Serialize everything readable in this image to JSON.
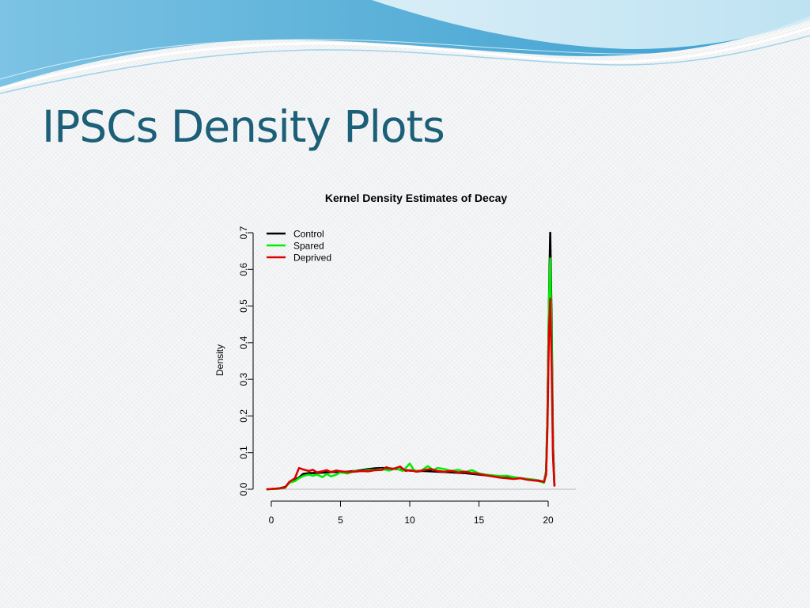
{
  "slide": {
    "title": "IPSCs Density Plots"
  },
  "colors": {
    "title": "#1b5f78",
    "banner_top": "#5ab0d8",
    "banner_light": "#bfe4f3",
    "background": "#f7f8f9"
  },
  "chart_data": {
    "type": "line",
    "title": "Kernel Density Estimates of Decay",
    "xlabel": "",
    "ylabel": "Density",
    "xlim": [
      0,
      20.5
    ],
    "ylim": [
      0,
      0.7
    ],
    "xticks": [
      "0",
      "5",
      "10",
      "15",
      "20"
    ],
    "yticks": [
      "0.0",
      "0.1",
      "0.2",
      "0.3",
      "0.4",
      "0.5",
      "0.6",
      "0.7"
    ],
    "legend_position": "top-left",
    "grid": false,
    "series": [
      {
        "name": "Control",
        "color": "#000000",
        "points": [
          [
            -0.3,
            0
          ],
          [
            0.5,
            0.002
          ],
          [
            1,
            0.006
          ],
          [
            1.3,
            0.018
          ],
          [
            1.7,
            0.026
          ],
          [
            2,
            0.032
          ],
          [
            2.3,
            0.042
          ],
          [
            2.7,
            0.044
          ],
          [
            3,
            0.044
          ],
          [
            3.5,
            0.045
          ],
          [
            4,
            0.046
          ],
          [
            4.5,
            0.047
          ],
          [
            5,
            0.047
          ],
          [
            5.5,
            0.048
          ],
          [
            6,
            0.05
          ],
          [
            6.5,
            0.052
          ],
          [
            7,
            0.055
          ],
          [
            7.5,
            0.057
          ],
          [
            8,
            0.058
          ],
          [
            8.5,
            0.057
          ],
          [
            9,
            0.055
          ],
          [
            9.5,
            0.053
          ],
          [
            10,
            0.051
          ],
          [
            10.5,
            0.05
          ],
          [
            11,
            0.05
          ],
          [
            11.5,
            0.049
          ],
          [
            12,
            0.048
          ],
          [
            12.5,
            0.047
          ],
          [
            13,
            0.046
          ],
          [
            13.5,
            0.045
          ],
          [
            14,
            0.044
          ],
          [
            14.5,
            0.042
          ],
          [
            15,
            0.04
          ],
          [
            15.5,
            0.038
          ],
          [
            16,
            0.036
          ],
          [
            16.5,
            0.035
          ],
          [
            17,
            0.034
          ],
          [
            17.5,
            0.032
          ],
          [
            18,
            0.03
          ],
          [
            18.5,
            0.028
          ],
          [
            19,
            0.026
          ],
          [
            19.5,
            0.022
          ],
          [
            19.7,
            0.02
          ],
          [
            19.85,
            0.05
          ],
          [
            19.95,
            0.2
          ],
          [
            20.05,
            0.5
          ],
          [
            20.15,
            0.7
          ],
          [
            20.25,
            0.45
          ],
          [
            20.35,
            0.12
          ],
          [
            20.45,
            0.01
          ]
        ]
      },
      {
        "name": "Spared",
        "color": "#00ee00",
        "points": [
          [
            -0.3,
            0
          ],
          [
            0.5,
            0.001
          ],
          [
            1,
            0.004
          ],
          [
            1.3,
            0.018
          ],
          [
            1.7,
            0.022
          ],
          [
            2,
            0.03
          ],
          [
            2.3,
            0.036
          ],
          [
            2.7,
            0.04
          ],
          [
            3,
            0.037
          ],
          [
            3.3,
            0.04
          ],
          [
            3.7,
            0.033
          ],
          [
            4,
            0.042
          ],
          [
            4.3,
            0.035
          ],
          [
            4.7,
            0.04
          ],
          [
            5,
            0.046
          ],
          [
            5.5,
            0.043
          ],
          [
            6,
            0.05
          ],
          [
            6.5,
            0.05
          ],
          [
            7,
            0.052
          ],
          [
            7.5,
            0.053
          ],
          [
            8,
            0.055
          ],
          [
            8.5,
            0.051
          ],
          [
            9,
            0.057
          ],
          [
            9.5,
            0.05
          ],
          [
            10,
            0.07
          ],
          [
            10.3,
            0.052
          ],
          [
            10.7,
            0.048
          ],
          [
            11,
            0.055
          ],
          [
            11.3,
            0.063
          ],
          [
            11.7,
            0.052
          ],
          [
            12,
            0.058
          ],
          [
            12.5,
            0.055
          ],
          [
            13,
            0.05
          ],
          [
            13.5,
            0.053
          ],
          [
            14,
            0.047
          ],
          [
            14.5,
            0.052
          ],
          [
            15,
            0.043
          ],
          [
            15.5,
            0.04
          ],
          [
            16,
            0.038
          ],
          [
            16.5,
            0.036
          ],
          [
            17,
            0.037
          ],
          [
            17.5,
            0.033
          ],
          [
            18,
            0.03
          ],
          [
            18.5,
            0.028
          ],
          [
            19,
            0.026
          ],
          [
            19.5,
            0.02
          ],
          [
            19.7,
            0.018
          ],
          [
            19.85,
            0.05
          ],
          [
            19.95,
            0.2
          ],
          [
            20.05,
            0.5
          ],
          [
            20.15,
            0.63
          ],
          [
            20.25,
            0.4
          ],
          [
            20.35,
            0.1
          ],
          [
            20.45,
            0.01
          ]
        ]
      },
      {
        "name": "Deprived",
        "color": "#dd0000",
        "points": [
          [
            -0.3,
            0
          ],
          [
            0.5,
            0.002
          ],
          [
            1,
            0.005
          ],
          [
            1.3,
            0.02
          ],
          [
            1.7,
            0.03
          ],
          [
            2,
            0.058
          ],
          [
            2.3,
            0.054
          ],
          [
            2.7,
            0.05
          ],
          [
            3,
            0.053
          ],
          [
            3.3,
            0.046
          ],
          [
            3.7,
            0.049
          ],
          [
            4,
            0.052
          ],
          [
            4.3,
            0.047
          ],
          [
            4.7,
            0.051
          ],
          [
            5,
            0.049
          ],
          [
            5.5,
            0.047
          ],
          [
            6,
            0.048
          ],
          [
            6.5,
            0.05
          ],
          [
            7,
            0.049
          ],
          [
            7.5,
            0.052
          ],
          [
            8,
            0.053
          ],
          [
            8.3,
            0.06
          ],
          [
            8.7,
            0.055
          ],
          [
            9,
            0.058
          ],
          [
            9.3,
            0.062
          ],
          [
            9.7,
            0.05
          ],
          [
            10,
            0.052
          ],
          [
            10.5,
            0.048
          ],
          [
            11,
            0.052
          ],
          [
            11.5,
            0.055
          ],
          [
            12,
            0.05
          ],
          [
            12.5,
            0.048
          ],
          [
            13,
            0.05
          ],
          [
            13.5,
            0.046
          ],
          [
            14,
            0.048
          ],
          [
            14.5,
            0.044
          ],
          [
            15,
            0.042
          ],
          [
            15.5,
            0.038
          ],
          [
            16,
            0.035
          ],
          [
            16.5,
            0.032
          ],
          [
            17,
            0.03
          ],
          [
            17.5,
            0.028
          ],
          [
            18,
            0.03
          ],
          [
            18.5,
            0.026
          ],
          [
            19,
            0.024
          ],
          [
            19.5,
            0.022
          ],
          [
            19.7,
            0.02
          ],
          [
            19.85,
            0.04
          ],
          [
            19.95,
            0.17
          ],
          [
            20.05,
            0.42
          ],
          [
            20.15,
            0.52
          ],
          [
            20.25,
            0.33
          ],
          [
            20.35,
            0.09
          ],
          [
            20.45,
            0.01
          ]
        ]
      }
    ]
  }
}
